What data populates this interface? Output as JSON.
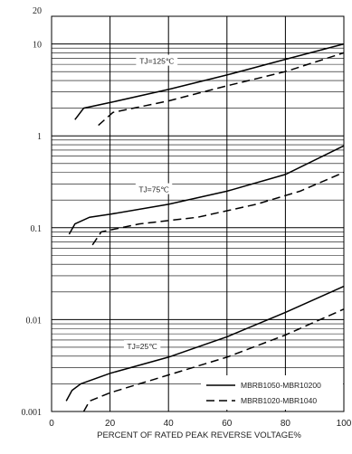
{
  "chart_data": {
    "type": "line",
    "title": "",
    "xlabel": "PERCENT OF RATED PEAK REVERSE VOLTAGE%",
    "ylabel": "",
    "xlim": [
      0,
      100
    ],
    "ylim": [
      0.001,
      20
    ],
    "y_scale": "log",
    "grid": true,
    "legend_position": "bottom-right",
    "x_ticks": [
      "0",
      "20",
      "40",
      "60",
      "80",
      "100"
    ],
    "y_ticks": [
      {
        "value": 20,
        "label": "20"
      },
      {
        "value": 10,
        "label": "10"
      },
      {
        "value": 1,
        "label": "1"
      },
      {
        "value": 0.1,
        "label": "0.1"
      },
      {
        "value": 0.01,
        "label": "0.01"
      },
      {
        "value": 0.001,
        "label": "0.001"
      }
    ],
    "legend": [
      {
        "label": "MBRB1050-MBR10200",
        "style": "solid"
      },
      {
        "label": "MBRB1020-MBR1040",
        "style": "dashed"
      }
    ],
    "annotations": [
      {
        "text": "TJ=125℃",
        "x": 36,
        "y": 6.5
      },
      {
        "text": "TJ=75℃",
        "x": 35,
        "y": 0.26
      },
      {
        "text": "TJ=25℃",
        "x": 31,
        "y": 0.0051
      }
    ],
    "series": [
      {
        "group": "TJ=125℃",
        "style": "solid",
        "points": [
          [
            8,
            1.5
          ],
          [
            11,
            2.0
          ],
          [
            20,
            2.3
          ],
          [
            40,
            3.2
          ],
          [
            60,
            4.6
          ],
          [
            80,
            6.8
          ],
          [
            100,
            10.0
          ]
        ]
      },
      {
        "group": "TJ=125℃",
        "style": "dashed",
        "points": [
          [
            16,
            1.3
          ],
          [
            21,
            1.8
          ],
          [
            40,
            2.4
          ],
          [
            60,
            3.5
          ],
          [
            80,
            5.0
          ],
          [
            100,
            8.0
          ]
        ]
      },
      {
        "group": "TJ=75℃",
        "style": "solid",
        "points": [
          [
            6,
            0.085
          ],
          [
            8,
            0.11
          ],
          [
            13,
            0.13
          ],
          [
            20,
            0.14
          ],
          [
            40,
            0.18
          ],
          [
            60,
            0.25
          ],
          [
            80,
            0.38
          ],
          [
            100,
            0.78
          ]
        ]
      },
      {
        "group": "TJ=75℃",
        "style": "dashed",
        "points": [
          [
            14,
            0.065
          ],
          [
            17,
            0.09
          ],
          [
            30,
            0.11
          ],
          [
            50,
            0.13
          ],
          [
            70,
            0.18
          ],
          [
            85,
            0.25
          ],
          [
            100,
            0.4
          ]
        ]
      },
      {
        "group": "TJ=25℃",
        "style": "solid",
        "points": [
          [
            5,
            0.0013
          ],
          [
            7,
            0.0017
          ],
          [
            10,
            0.002
          ],
          [
            20,
            0.0026
          ],
          [
            40,
            0.0039
          ],
          [
            60,
            0.0065
          ],
          [
            80,
            0.012
          ],
          [
            100,
            0.023
          ]
        ]
      },
      {
        "group": "TJ=25℃",
        "style": "dashed",
        "points": [
          [
            11,
            0.001
          ],
          [
            13,
            0.0013
          ],
          [
            20,
            0.0016
          ],
          [
            40,
            0.0025
          ],
          [
            60,
            0.0039
          ],
          [
            80,
            0.0068
          ],
          [
            100,
            0.013
          ]
        ]
      }
    ]
  }
}
